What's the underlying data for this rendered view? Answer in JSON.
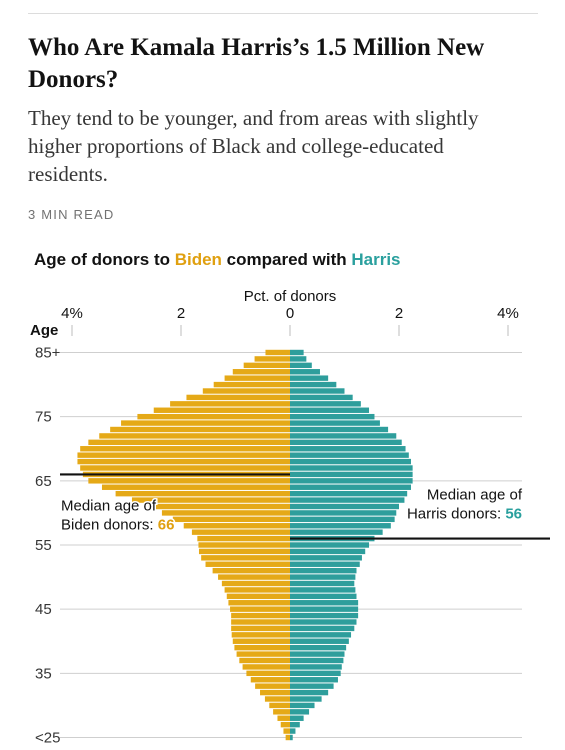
{
  "article": {
    "headline": "Who Are Kamala Harris’s 1.5 Million New Donors?",
    "dek": "They tend to be younger, and from areas with slightly higher proportions of Black and college-educated residents.",
    "read_time": "3 MIN READ"
  },
  "colors": {
    "biden": "#e5a917",
    "harris": "#2e9e9c",
    "biden_text": "#e0a010",
    "harris_text": "#2aa09e",
    "grid": "#cfcfcf",
    "median_line": "#111111"
  },
  "chart_data": {
    "type": "bar",
    "orientation": "horizontal-butterfly",
    "title_parts": [
      {
        "text": "Age of donors to ",
        "series": null
      },
      {
        "text": "Biden",
        "series": "biden"
      },
      {
        "text": " compared with ",
        "series": null
      },
      {
        "text": "Harris",
        "series": "harris"
      }
    ],
    "xlabel": "Pct. of donors",
    "ylabel": "Age",
    "xlim": [
      -4.2,
      4.2
    ],
    "ylim": [
      25,
      85
    ],
    "x_ticks": [
      {
        "value": -4,
        "label": "4%"
      },
      {
        "value": -2,
        "label": "2"
      },
      {
        "value": 0,
        "label": "0"
      },
      {
        "value": 2,
        "label": "2"
      },
      {
        "value": 4,
        "label": "4%"
      }
    ],
    "y_ticks": [
      {
        "value": 85,
        "label": "85+"
      },
      {
        "value": 75,
        "label": "75"
      },
      {
        "value": 65,
        "label": "65"
      },
      {
        "value": 55,
        "label": "55"
      },
      {
        "value": 45,
        "label": "45"
      },
      {
        "value": 35,
        "label": "35"
      },
      {
        "value": 25,
        "label": "<25"
      }
    ],
    "ages": [
      25,
      26,
      27,
      28,
      29,
      30,
      31,
      32,
      33,
      34,
      35,
      36,
      37,
      38,
      39,
      40,
      41,
      42,
      43,
      44,
      45,
      46,
      47,
      48,
      49,
      50,
      51,
      52,
      53,
      54,
      55,
      56,
      57,
      58,
      59,
      60,
      61,
      62,
      63,
      64,
      65,
      66,
      67,
      68,
      69,
      70,
      71,
      72,
      73,
      74,
      75,
      76,
      77,
      78,
      79,
      80,
      81,
      82,
      83,
      84,
      85
    ],
    "series": [
      {
        "name": "Biden",
        "key": "biden",
        "values": [
          0.08,
          0.12,
          0.17,
          0.23,
          0.31,
          0.38,
          0.46,
          0.55,
          0.64,
          0.72,
          0.8,
          0.87,
          0.93,
          0.98,
          1.02,
          1.05,
          1.07,
          1.08,
          1.08,
          1.08,
          1.1,
          1.13,
          1.16,
          1.2,
          1.25,
          1.32,
          1.42,
          1.55,
          1.63,
          1.67,
          1.68,
          1.7,
          1.8,
          1.95,
          2.15,
          2.35,
          2.6,
          2.9,
          3.2,
          3.45,
          3.7,
          3.8,
          3.85,
          3.9,
          3.9,
          3.85,
          3.7,
          3.5,
          3.3,
          3.1,
          2.8,
          2.5,
          2.2,
          1.9,
          1.6,
          1.4,
          1.2,
          1.05,
          0.85,
          0.65,
          0.45
        ]
      },
      {
        "name": "Harris",
        "key": "harris",
        "values": [
          0.05,
          0.1,
          0.18,
          0.25,
          0.35,
          0.45,
          0.58,
          0.7,
          0.8,
          0.88,
          0.93,
          0.95,
          0.98,
          1.0,
          1.03,
          1.08,
          1.12,
          1.18,
          1.22,
          1.25,
          1.25,
          1.25,
          1.22,
          1.2,
          1.18,
          1.2,
          1.22,
          1.28,
          1.32,
          1.38,
          1.45,
          1.55,
          1.7,
          1.85,
          1.92,
          1.95,
          2.0,
          2.1,
          2.15,
          2.22,
          2.25,
          2.25,
          2.25,
          2.22,
          2.18,
          2.12,
          2.05,
          1.95,
          1.8,
          1.65,
          1.55,
          1.45,
          1.3,
          1.15,
          1.0,
          0.85,
          0.7,
          0.55,
          0.4,
          0.3,
          0.25
        ]
      }
    ],
    "medians": [
      {
        "series": "biden",
        "age": 66,
        "label": "Median age of",
        "label_line2_prefix": "Biden donors: ",
        "label_value": "66"
      },
      {
        "series": "harris",
        "age": 56,
        "label": "Median age of",
        "label_line2_prefix": "Harris donors: ",
        "label_value": "56"
      }
    ],
    "grid": true,
    "grid_axis": "y"
  }
}
